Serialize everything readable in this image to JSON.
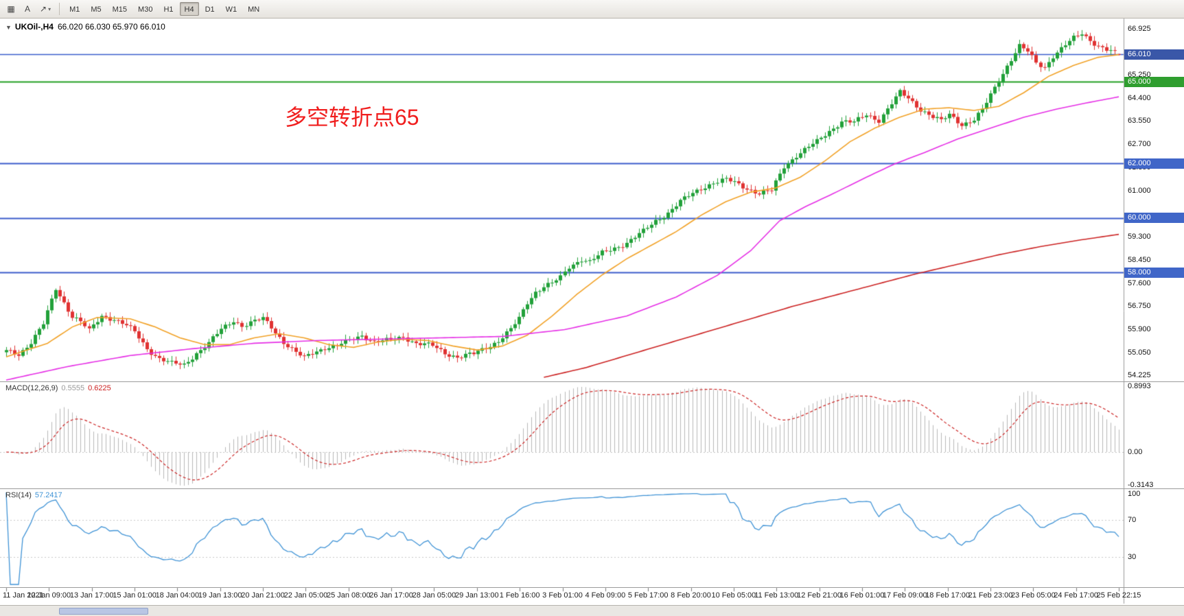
{
  "colors": {
    "up": "#22a13a",
    "down": "#e03232",
    "ma_fast": "#f2a227",
    "ma_mid": "#e62ee6",
    "ma_slow": "#cc2222",
    "hline_blue": "#3a5ccc",
    "hline_green": "#22a022",
    "label_blue": "#4066c8",
    "label_current": "#3a57a8",
    "label_green": "#2f9e2f",
    "macd_hist": "#b8b8b8",
    "macd_signal": "#cc2222",
    "rsi_line": "#3f93d6",
    "annotation_red": "#f01e1e"
  },
  "toolbar": {
    "grid_tool_label": "▦",
    "text_tool_label": "A",
    "draw_tool_label": "↗",
    "timeframes": [
      "M1",
      "M5",
      "M15",
      "M30",
      "H1",
      "H4",
      "D1",
      "W1",
      "MN"
    ],
    "active_timeframe": "H4"
  },
  "chart": {
    "symbol_title": "UKOil-,H4",
    "ohlc": "66.020 66.030 65.970 66.010",
    "annotation": "多空转折点65",
    "price_ticks": [
      "66.925",
      "65.250",
      "64.400",
      "63.550",
      "62.700",
      "61.850",
      "61.000",
      "59.300",
      "58.450",
      "57.600",
      "56.750",
      "55.900",
      "55.050",
      "54.225"
    ],
    "hlines": [
      {
        "price": 66.01,
        "label": "66.010",
        "style": "current"
      },
      {
        "price": 65.0,
        "label": "65.000",
        "style": "green"
      },
      {
        "price": 62.0,
        "label": "62.000",
        "style": "blue"
      },
      {
        "price": 60.0,
        "label": "60.000",
        "style": "blue"
      },
      {
        "price": 58.0,
        "label": "58.000",
        "style": "blue"
      }
    ]
  },
  "macd": {
    "label": "MACD(12,26,9)",
    "value_main": "0.5555",
    "value_signal": "0.6225",
    "scale_top": "0.8993",
    "scale_zero": "0.00",
    "scale_bottom": "-0.3143"
  },
  "rsi": {
    "label": "RSI(14)",
    "value": "57.2417",
    "scale": [
      "100",
      "70",
      "30"
    ],
    "levels": [
      70,
      30
    ]
  },
  "time_axis": [
    "11 Jan 2021",
    "12 Jan 09:00",
    "13 Jan 17:00",
    "15 Jan 01:00",
    "18 Jan 04:00",
    "19 Jan 13:00",
    "20 Jan 21:00",
    "22 Jan 05:00",
    "25 Jan 08:00",
    "26 Jan 17:00",
    "28 Jan 05:00",
    "29 Jan 13:00",
    "1 Feb 16:00",
    "3 Feb 01:00",
    "4 Feb 09:00",
    "5 Feb 17:00",
    "8 Feb 20:00",
    "10 Feb 05:00",
    "11 Feb 13:00",
    "12 Feb 21:00",
    "16 Feb 01:00",
    "17 Feb 09:00",
    "18 Feb 17:00",
    "21 Feb 23:00",
    "23 Feb 05:00",
    "24 Feb 17:00",
    "25 Feb 22:15"
  ],
  "chart_data": {
    "type": "candlestick",
    "symbol": "UKOil-",
    "period": "H4",
    "n_candles": 270,
    "y_min": 54.0,
    "y_max": 67.25,
    "last_candle": [
      66.02,
      66.03,
      65.97,
      66.01
    ],
    "close_anchors": [
      [
        0,
        55.1
      ],
      [
        3,
        55.0
      ],
      [
        6,
        55.45
      ],
      [
        9,
        56.1
      ],
      [
        12,
        57.4
      ],
      [
        14,
        56.9
      ],
      [
        16,
        56.4
      ],
      [
        18,
        56.2
      ],
      [
        20,
        55.85
      ],
      [
        23,
        56.4
      ],
      [
        26,
        56.3
      ],
      [
        29,
        56.05
      ],
      [
        31,
        55.8
      ],
      [
        34,
        55.2
      ],
      [
        37,
        54.85
      ],
      [
        40,
        54.65
      ],
      [
        43,
        54.6
      ],
      [
        46,
        55.05
      ],
      [
        49,
        55.4
      ],
      [
        52,
        55.9
      ],
      [
        55,
        56.25
      ],
      [
        57,
        56.05
      ],
      [
        60,
        56.2
      ],
      [
        62,
        56.3
      ],
      [
        64,
        56.0
      ],
      [
        67,
        55.45
      ],
      [
        70,
        55.05
      ],
      [
        72,
        54.85
      ],
      [
        74,
        55.05
      ],
      [
        77,
        55.25
      ],
      [
        80,
        55.3
      ],
      [
        83,
        55.5
      ],
      [
        86,
        55.7
      ],
      [
        89,
        55.45
      ],
      [
        93,
        55.5
      ],
      [
        96,
        55.65
      ],
      [
        99,
        55.4
      ],
      [
        103,
        55.3
      ],
      [
        106,
        55.05
      ],
      [
        109,
        54.9
      ],
      [
        113,
        55.0
      ],
      [
        116,
        55.25
      ],
      [
        119,
        55.5
      ],
      [
        122,
        55.9
      ],
      [
        124,
        56.3
      ],
      [
        126,
        56.9
      ],
      [
        128,
        57.3
      ],
      [
        130,
        57.5
      ],
      [
        132,
        57.6
      ],
      [
        134,
        57.8
      ],
      [
        136,
        58.2
      ],
      [
        139,
        58.5
      ],
      [
        141,
        58.4
      ],
      [
        144,
        58.7
      ],
      [
        147,
        58.9
      ],
      [
        150,
        59.1
      ],
      [
        152,
        59.3
      ],
      [
        154,
        59.5
      ],
      [
        157,
        59.9
      ],
      [
        160,
        60.2
      ],
      [
        163,
        60.6
      ],
      [
        165,
        60.8
      ],
      [
        168,
        61.1
      ],
      [
        171,
        61.3
      ],
      [
        174,
        61.4
      ],
      [
        176,
        61.3
      ],
      [
        179,
        61.1
      ],
      [
        182,
        60.9
      ],
      [
        185,
        61.0
      ],
      [
        188,
        61.9
      ],
      [
        191,
        62.3
      ],
      [
        194,
        62.6
      ],
      [
        196,
        62.8
      ],
      [
        199,
        63.2
      ],
      [
        202,
        63.55
      ],
      [
        205,
        63.5
      ],
      [
        208,
        63.8
      ],
      [
        211,
        63.6
      ],
      [
        214,
        64.2
      ],
      [
        216,
        64.6
      ],
      [
        218,
        64.4
      ],
      [
        221,
        64.0
      ],
      [
        224,
        63.7
      ],
      [
        226,
        63.55
      ],
      [
        228,
        63.8
      ],
      [
        231,
        63.45
      ],
      [
        234,
        63.6
      ],
      [
        236,
        63.95
      ],
      [
        239,
        64.8
      ],
      [
        242,
        65.6
      ],
      [
        245,
        66.3
      ],
      [
        247,
        66.1
      ],
      [
        249,
        65.7
      ],
      [
        251,
        65.55
      ],
      [
        253,
        65.95
      ],
      [
        255,
        66.2
      ],
      [
        258,
        66.6
      ],
      [
        260,
        66.8
      ],
      [
        262,
        66.55
      ],
      [
        264,
        66.3
      ],
      [
        266,
        66.15
      ],
      [
        269,
        66.01
      ]
    ],
    "ma_fast_anchors": [
      [
        0,
        54.9
      ],
      [
        10,
        55.4
      ],
      [
        16,
        56.0
      ],
      [
        22,
        56.35
      ],
      [
        30,
        56.3
      ],
      [
        36,
        56.0
      ],
      [
        42,
        55.6
      ],
      [
        48,
        55.35
      ],
      [
        54,
        55.35
      ],
      [
        60,
        55.6
      ],
      [
        66,
        55.75
      ],
      [
        72,
        55.6
      ],
      [
        78,
        55.35
      ],
      [
        84,
        55.25
      ],
      [
        90,
        55.45
      ],
      [
        96,
        55.55
      ],
      [
        102,
        55.5
      ],
      [
        108,
        55.3
      ],
      [
        114,
        55.15
      ],
      [
        120,
        55.3
      ],
      [
        126,
        55.7
      ],
      [
        132,
        56.4
      ],
      [
        138,
        57.2
      ],
      [
        144,
        57.9
      ],
      [
        150,
        58.5
      ],
      [
        156,
        59.0
      ],
      [
        162,
        59.5
      ],
      [
        168,
        60.1
      ],
      [
        174,
        60.6
      ],
      [
        180,
        60.95
      ],
      [
        186,
        61.1
      ],
      [
        192,
        61.5
      ],
      [
        198,
        62.1
      ],
      [
        204,
        62.8
      ],
      [
        210,
        63.3
      ],
      [
        216,
        63.7
      ],
      [
        222,
        64.0
      ],
      [
        228,
        64.05
      ],
      [
        234,
        63.95
      ],
      [
        240,
        64.1
      ],
      [
        246,
        64.6
      ],
      [
        252,
        65.2
      ],
      [
        258,
        65.6
      ],
      [
        264,
        65.9
      ],
      [
        269,
        66.0
      ]
    ],
    "ma_mid_anchors": [
      [
        0,
        54.05
      ],
      [
        15,
        54.55
      ],
      [
        30,
        54.95
      ],
      [
        45,
        55.2
      ],
      [
        60,
        55.4
      ],
      [
        75,
        55.5
      ],
      [
        90,
        55.55
      ],
      [
        105,
        55.6
      ],
      [
        120,
        55.65
      ],
      [
        135,
        55.9
      ],
      [
        150,
        56.4
      ],
      [
        162,
        57.1
      ],
      [
        172,
        57.9
      ],
      [
        180,
        58.8
      ],
      [
        187,
        59.9
      ],
      [
        193,
        60.4
      ],
      [
        200,
        60.9
      ],
      [
        208,
        61.5
      ],
      [
        215,
        62.0
      ],
      [
        222,
        62.4
      ],
      [
        230,
        62.9
      ],
      [
        238,
        63.3
      ],
      [
        246,
        63.7
      ],
      [
        254,
        64.0
      ],
      [
        262,
        64.25
      ],
      [
        269,
        64.45
      ]
    ],
    "ma_slow_anchors": [
      [
        130,
        54.15
      ],
      [
        140,
        54.5
      ],
      [
        150,
        54.95
      ],
      [
        160,
        55.4
      ],
      [
        170,
        55.85
      ],
      [
        180,
        56.3
      ],
      [
        190,
        56.75
      ],
      [
        200,
        57.15
      ],
      [
        210,
        57.55
      ],
      [
        220,
        57.95
      ],
      [
        230,
        58.3
      ],
      [
        240,
        58.65
      ],
      [
        250,
        58.95
      ],
      [
        260,
        59.2
      ],
      [
        269,
        59.4
      ]
    ],
    "indicators": [
      {
        "name": "MACD",
        "params": [
          12,
          26,
          9
        ],
        "main": 0.5555,
        "signal": 0.6225,
        "range": [
          -0.3143,
          0.8993
        ]
      },
      {
        "name": "RSI",
        "params": [
          14
        ],
        "value": 57.2417,
        "range": [
          0,
          100
        ],
        "levels": [
          30,
          70
        ]
      }
    ]
  }
}
